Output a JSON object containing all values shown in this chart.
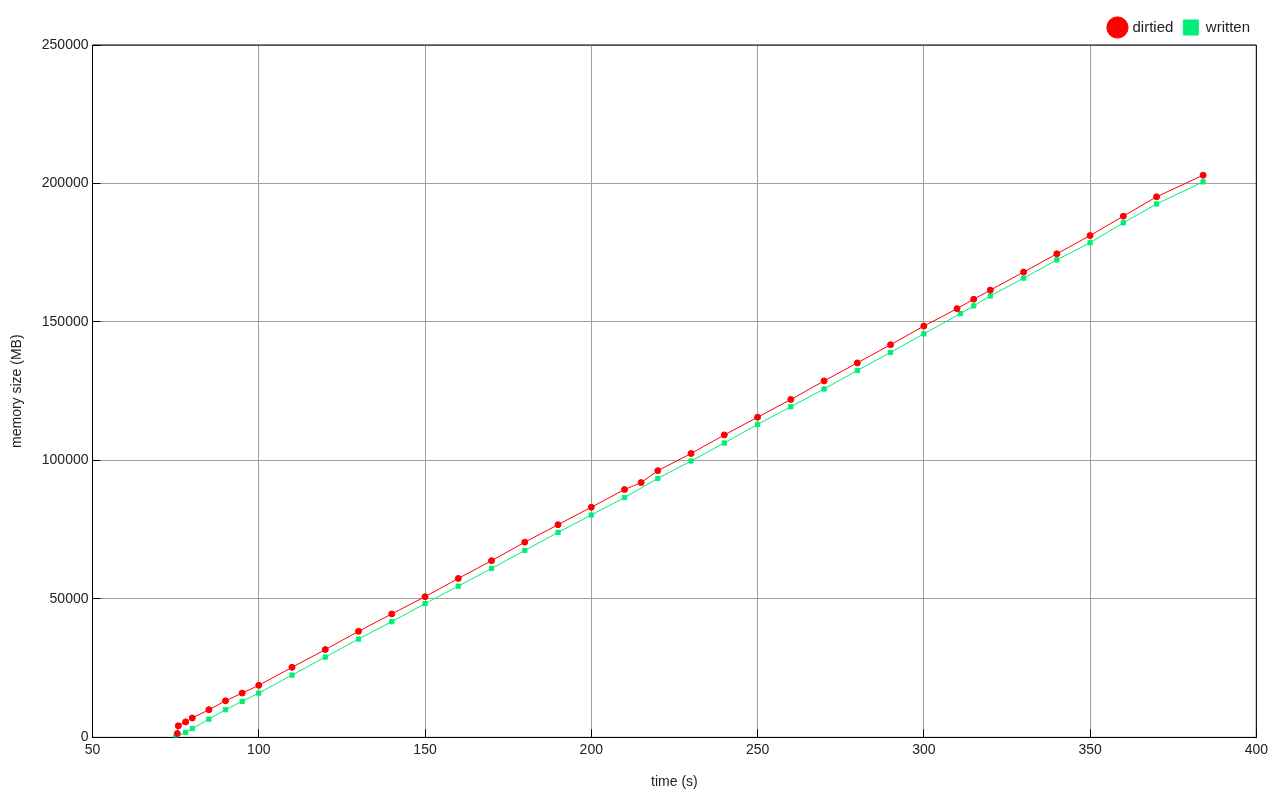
{
  "chart_data": {
    "type": "line",
    "xlabel": "time (s)",
    "ylabel": "memory size (MB)",
    "xlim": [
      50,
      400
    ],
    "xticks": [
      50,
      100,
      150,
      200,
      250,
      300,
      350,
      400
    ],
    "ylim": [
      0,
      250000
    ],
    "yticks": [
      0,
      50000,
      100000,
      150000,
      200000,
      250000
    ],
    "grid": true,
    "legend": "top right",
    "series": [
      {
        "name": "dirtied",
        "color": "#ff0000",
        "marker": "circle",
        "x": [
          75.5,
          75.8,
          78,
          80,
          85,
          90,
          95,
          100,
          110,
          120,
          130,
          140,
          150,
          160,
          170,
          180,
          190,
          200,
          210,
          215,
          220,
          230,
          240,
          250,
          260,
          270,
          280,
          290,
          300,
          310,
          315,
          320,
          330,
          340,
          350,
          360,
          370,
          384
        ],
        "values": [
          1400,
          4200,
          5600,
          7000,
          10000,
          13200,
          16000,
          18800,
          25300,
          31700,
          38300,
          44600,
          50800,
          57400,
          63800,
          70500,
          76800,
          83100,
          89500,
          92000,
          96300,
          102500,
          109200,
          115600,
          122000,
          128700,
          135200,
          141800,
          148500,
          154800,
          158200,
          161500,
          168000,
          174600,
          181200,
          188200,
          195200,
          203000
        ]
      },
      {
        "name": "written",
        "color": "#00ee77",
        "marker": "square",
        "x": [
          75,
          78,
          80,
          85,
          90,
          95,
          100,
          110,
          120,
          130,
          140,
          150,
          160,
          170,
          180,
          190,
          200,
          210,
          220,
          230,
          240,
          250,
          260,
          270,
          280,
          290,
          300,
          311,
          315,
          320,
          330,
          340,
          350,
          360,
          370,
          384
        ],
        "values": [
          0,
          1800,
          3200,
          6600,
          10000,
          13000,
          16000,
          22500,
          29000,
          35500,
          41800,
          48300,
          54600,
          61000,
          67500,
          74000,
          80300,
          86600,
          93500,
          99800,
          106300,
          113000,
          119400,
          125800,
          132500,
          139000,
          145700,
          153000,
          155800,
          159400,
          165800,
          172400,
          178600,
          185800,
          192600,
          200600
        ]
      }
    ]
  }
}
